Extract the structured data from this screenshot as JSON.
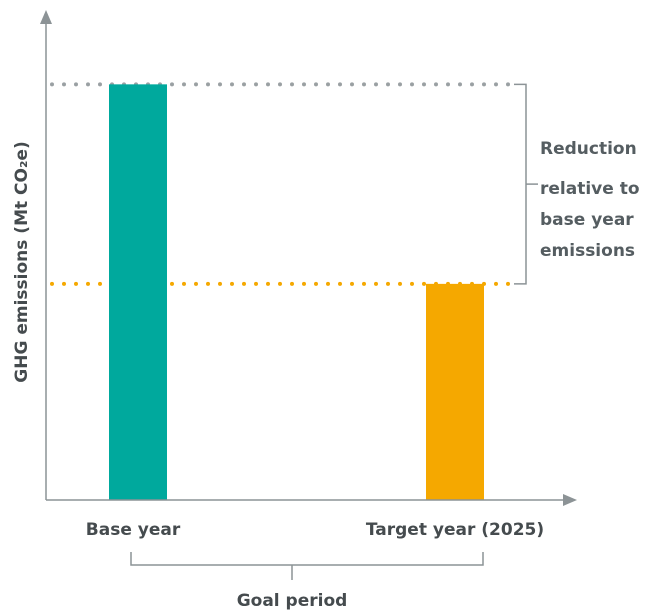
{
  "chart_data": {
    "type": "bar",
    "title": "",
    "ylabel": "GHG emissions (Mt CO₂e)",
    "xlabel": "",
    "categories": [
      "Base year",
      "Target year (2025)"
    ],
    "values": [
      100,
      52
    ],
    "ylim": [
      0,
      115
    ],
    "grid": false,
    "bar_colors": [
      "#00a99d",
      "#f5a800"
    ],
    "reference_lines": [
      {
        "value": 100,
        "style": "dotted",
        "color": "#9aa0a3"
      },
      {
        "value": 52,
        "style": "dotted",
        "color": "#f5a800"
      }
    ],
    "annotations": {
      "reduction_label": [
        "Reduction",
        "relative to",
        "base year",
        "emissions"
      ],
      "period_label": "Goal period"
    }
  },
  "colors": {
    "axis": "#8c9396",
    "label_text": "#454b4e",
    "accent_text": "#555d61"
  }
}
